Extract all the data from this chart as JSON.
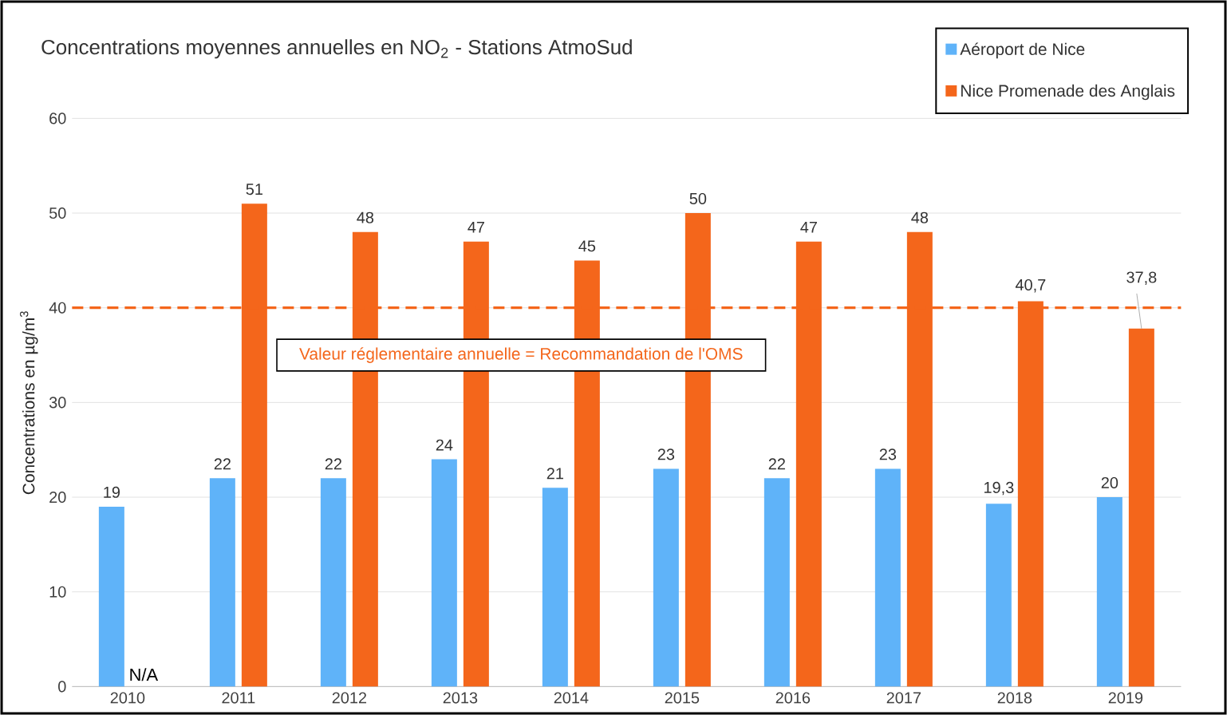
{
  "chart_data": {
    "type": "bar",
    "title": "Concentrations moyennes annuelles en NO$_{2}$ - Stations AtmoSud",
    "ylabel": "Concentrations en µg/m$^{3}$",
    "categories": [
      "2010",
      "2011",
      "2012",
      "2013",
      "2014",
      "2015",
      "2016",
      "2017",
      "2018",
      "2019"
    ],
    "series": [
      {
        "name": "Aéroport de Nice",
        "color": "#5fb3f9",
        "values": [
          19,
          22,
          22,
          24,
          21,
          23,
          22,
          23,
          19.3,
          20
        ],
        "value_labels": [
          "19",
          "22",
          "22",
          "24",
          "21",
          "23",
          "22",
          "23",
          "19,3",
          "20"
        ]
      },
      {
        "name": "Nice Promenade des Anglais",
        "color": "#f4661b",
        "values": [
          null,
          51,
          48,
          47,
          45,
          50,
          47,
          48,
          40.7,
          37.8
        ],
        "value_labels": [
          "N/A",
          "51",
          "48",
          "47",
          "45",
          "50",
          "47",
          "48",
          "40,7",
          "37,8"
        ]
      }
    ],
    "ylim": [
      0,
      60
    ],
    "yticks": [
      0,
      10,
      20,
      30,
      40,
      50,
      60
    ],
    "grid": "y",
    "legend": "top right",
    "ref_lines": [
      {
        "axis": "y",
        "value": 40,
        "label": "Valeur réglementaire annuelle = Recommandation de l'OMS",
        "color": "#f4661b",
        "line_style": "dashed"
      }
    ]
  }
}
